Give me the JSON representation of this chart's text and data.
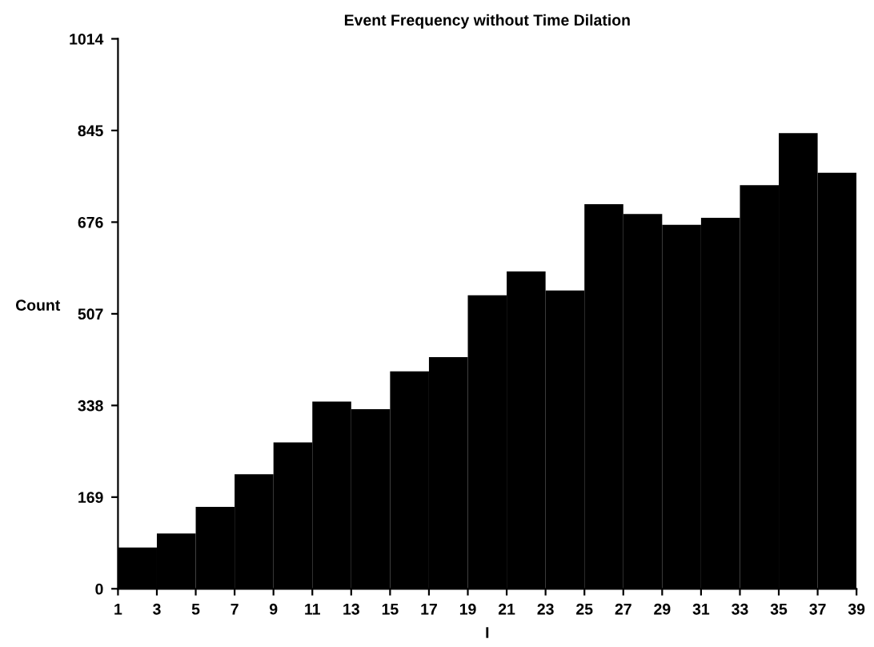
{
  "chart_data": {
    "type": "histogram",
    "title": "Event Frequency without Time Dilation",
    "xlabel": "I",
    "ylabel": "Count",
    "bins": [
      1,
      3,
      5,
      7,
      9,
      11,
      13,
      15,
      17,
      19,
      21,
      23,
      25,
      27,
      29,
      31,
      33,
      35,
      37,
      39
    ],
    "values": [
      76,
      102,
      151,
      211,
      270,
      345,
      331,
      401,
      427,
      541,
      585,
      550,
      709,
      691,
      671,
      684,
      744,
      840,
      767
    ],
    "color": "#000000",
    "xlim": [
      1,
      39
    ],
    "xticks": [
      1,
      3,
      5,
      7,
      9,
      11,
      13,
      15,
      17,
      19,
      21,
      23,
      25,
      27,
      29,
      31,
      33,
      35,
      37,
      39
    ],
    "ylim": [
      0,
      1014
    ],
    "yticks": [
      0,
      169,
      338,
      507,
      676,
      845,
      1014
    ],
    "grid": false,
    "legend": false
  }
}
